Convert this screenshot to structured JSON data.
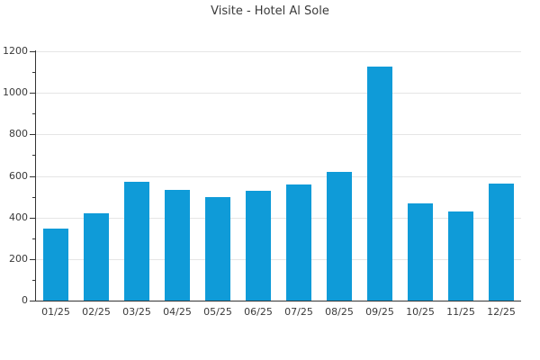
{
  "chart_data": {
    "type": "bar",
    "title": "Visite - Hotel Al Sole",
    "categories": [
      "01/25",
      "02/25",
      "03/25",
      "04/25",
      "05/25",
      "06/25",
      "07/25",
      "08/25",
      "09/25",
      "10/25",
      "11/25",
      "12/25"
    ],
    "values": [
      345,
      420,
      570,
      535,
      500,
      530,
      560,
      620,
      1125,
      470,
      430,
      565
    ],
    "xlabel": "",
    "ylabel": "",
    "ylim": [
      0,
      1200
    ],
    "yticks": [
      0,
      200,
      400,
      600,
      800,
      1000,
      1200
    ],
    "minor_yticks": [
      100,
      300,
      500,
      700,
      900,
      1100
    ],
    "grid": "horizontal-major",
    "legend": "none",
    "bar_color": "#0f9bd8",
    "axis_color": "#333333",
    "grid_color": "#e5e5e5",
    "text_color": "#3a3a3a",
    "background_color": "#ffffff"
  }
}
